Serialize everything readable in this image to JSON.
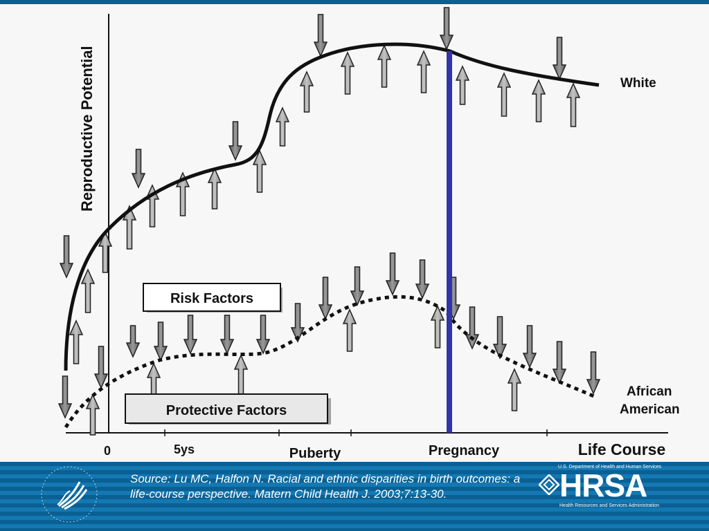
{
  "diagram": {
    "y_axis_label": "Reproductive Potential",
    "x_axis_label": "Life Course",
    "x_ticks": [
      "0",
      "5ys",
      "Puberty",
      "Pregnancy"
    ],
    "curve_labels": {
      "white": "White",
      "african_american_1": "African",
      "african_american_2": "American"
    },
    "risk_factors_label": "Risk Factors",
    "protective_factors_label": "Protective Factors",
    "marker_color": "#3333aa"
  },
  "footer": {
    "source": "Source: Lu MC, Halfon N. Racial and ethnic disparities in birth outcomes: a life-course perspective. Matern Child Health J. 2003;7:13-30.",
    "hrsa": {
      "top_text": "U.S. Department of Health and Human Services",
      "wordmark": "HRSA",
      "subtitle": "Health Resources and Services Administration"
    }
  },
  "colors": {
    "background": "#0a5f93",
    "slide": "#f7f7f7"
  }
}
